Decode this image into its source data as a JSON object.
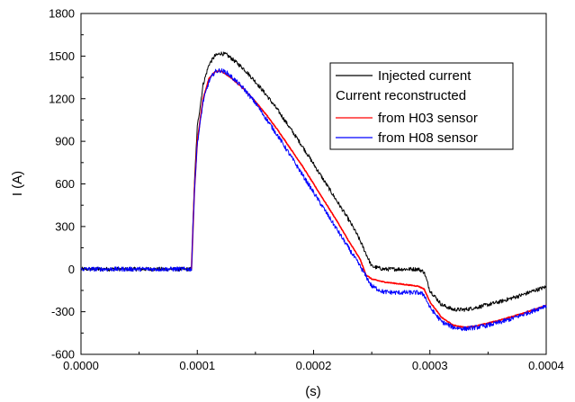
{
  "chart_data": {
    "type": "line",
    "xlabel": "(s)",
    "ylabel": "I (A)",
    "xlim": [
      0,
      0.0004
    ],
    "ylim": [
      -600,
      1800
    ],
    "x_ticks": [
      0,
      0.0001,
      0.0002,
      0.0003,
      0.0004
    ],
    "x_tick_labels": [
      "0.0000",
      "0.0001",
      "0.0002",
      "0.0003",
      "0.0004"
    ],
    "y_ticks": [
      -600,
      -300,
      0,
      300,
      600,
      900,
      1200,
      1500,
      1800
    ],
    "y_tick_labels": [
      "-600",
      "-300",
      "0",
      "300",
      "600",
      "900",
      "1200",
      "1500",
      "1800"
    ],
    "grid": false,
    "legend_position": "top-right",
    "legend_header": "Current reconstructed",
    "series": [
      {
        "name": "Injected current",
        "color": "#000000",
        "noise": 14,
        "x": [
          0,
          9.5e-05,
          9.75e-05,
          0.0001,
          0.000105,
          0.00011,
          0.000115,
          0.00012,
          0.000125,
          0.00013,
          0.00014,
          0.00015,
          0.00016,
          0.00017,
          0.00018,
          0.00019,
          0.0002,
          0.00021,
          0.00022,
          0.00023,
          0.000235,
          0.00024,
          0.00025,
          0.00026,
          0.00027,
          0.00028,
          0.00029,
          0.000295,
          0.0003,
          0.00031,
          0.00032,
          0.00033,
          0.00034,
          0.00035,
          0.00036,
          0.00037,
          0.00038,
          0.00039,
          0.0004
        ],
        "y": [
          0,
          0,
          600,
          1000,
          1300,
          1440,
          1500,
          1520,
          1510,
          1480,
          1410,
          1320,
          1220,
          1110,
          990,
          870,
          740,
          610,
          480,
          350,
          280,
          200,
          20,
          0,
          0,
          0,
          0,
          -20,
          -150,
          -250,
          -285,
          -285,
          -270,
          -250,
          -230,
          -205,
          -180,
          -150,
          -125
        ]
      },
      {
        "name": "from H03 sensor",
        "color": "#ff0000",
        "noise": 3,
        "x": [
          9.5e-05,
          9.75e-05,
          0.0001,
          0.000105,
          0.00011,
          0.000115,
          0.00012,
          0.000125,
          0.00013,
          0.00014,
          0.00015,
          0.00016,
          0.00017,
          0.00018,
          0.00019,
          0.0002,
          0.00021,
          0.00022,
          0.00023,
          0.00024,
          0.000245,
          0.00025,
          0.00026,
          0.00027,
          0.00028,
          0.00029,
          0.000295,
          0.0003,
          0.00031,
          0.00032,
          0.00033,
          0.00034,
          0.00035,
          0.00036,
          0.00037,
          0.00038,
          0.00039,
          0.0004
        ],
        "y": [
          0,
          550,
          900,
          1200,
          1340,
          1390,
          1395,
          1370,
          1340,
          1270,
          1180,
          1080,
          970,
          850,
          730,
          600,
          470,
          340,
          200,
          70,
          -40,
          -70,
          -90,
          -100,
          -110,
          -120,
          -140,
          -230,
          -340,
          -395,
          -410,
          -400,
          -380,
          -360,
          -335,
          -310,
          -285,
          -255
        ]
      },
      {
        "name": "from H08 sensor",
        "color": "#0000ff",
        "noise": 16,
        "x": [
          0,
          9.5e-05,
          9.75e-05,
          0.0001,
          0.000105,
          0.00011,
          0.000115,
          0.00012,
          0.000125,
          0.00013,
          0.00014,
          0.00015,
          0.00016,
          0.00017,
          0.00018,
          0.00019,
          0.0002,
          0.00021,
          0.00022,
          0.00023,
          0.00024,
          0.00025,
          0.00026,
          0.00027,
          0.00028,
          0.00029,
          0.000295,
          0.0003,
          0.00031,
          0.00032,
          0.00033,
          0.00034,
          0.00035,
          0.00036,
          0.00037,
          0.00038,
          0.00039,
          0.0004
        ],
        "y": [
          0,
          0,
          550,
          880,
          1180,
          1320,
          1390,
          1400,
          1385,
          1350,
          1270,
          1170,
          1050,
          930,
          800,
          670,
          540,
          410,
          280,
          150,
          20,
          -120,
          -160,
          -165,
          -165,
          -165,
          -180,
          -270,
          -370,
          -410,
          -420,
          -410,
          -395,
          -375,
          -350,
          -320,
          -290,
          -255
        ]
      }
    ]
  }
}
